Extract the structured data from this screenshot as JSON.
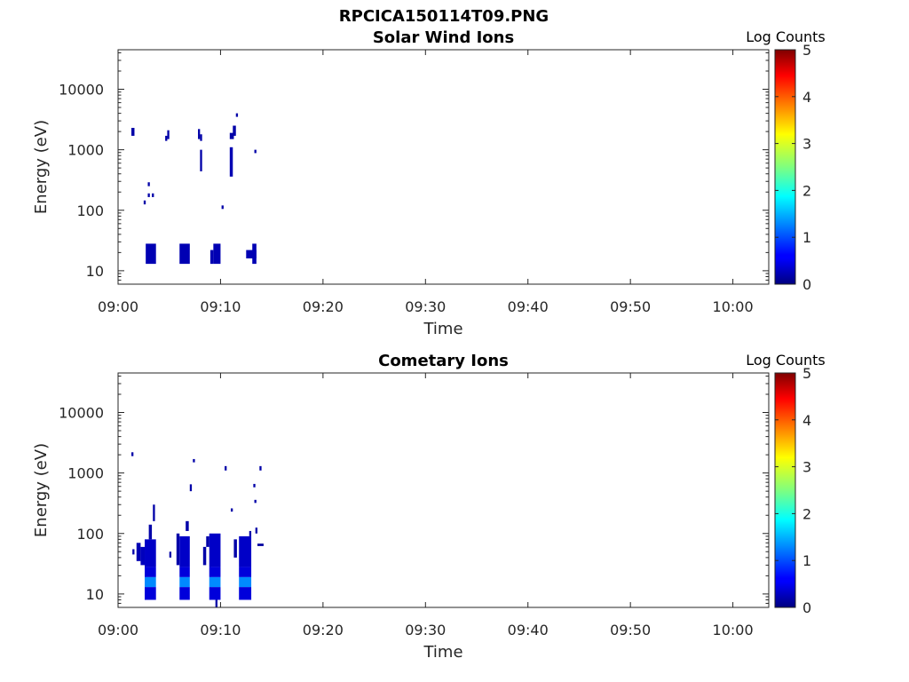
{
  "figure": {
    "title": "RPCICA150114T09.PNG"
  },
  "chart_data": [
    {
      "type": "heatmap",
      "title": "Solar Wind Ions",
      "xlabel": "Time",
      "ylabel": "Energy (eV)",
      "x_ticks": [
        "09:00",
        "09:10",
        "09:20",
        "09:30",
        "09:40",
        "09:50",
        "10:00"
      ],
      "xlim_minutes": [
        0,
        63.5
      ],
      "y_ticks": [
        {
          "value": 10,
          "label": "10"
        },
        {
          "value": 100,
          "label": "100"
        },
        {
          "value": 1000,
          "label": "1000"
        },
        {
          "value": 10000,
          "label": "10000"
        }
      ],
      "y_scale": "log",
      "ylim": [
        6,
        45000
      ],
      "colorbar": {
        "label": "Log Counts",
        "min": 0,
        "max": 5,
        "ticks": [
          "0",
          "1",
          "2",
          "3",
          "4",
          "5"
        ],
        "colormap": "jet"
      },
      "cells": [
        {
          "t0": 1.3,
          "t1": 1.6,
          "e0": 1700,
          "e1": 2300,
          "c": 0.2
        },
        {
          "t0": 2.5,
          "t1": 2.7,
          "e0": 125,
          "e1": 145,
          "c": 0.2
        },
        {
          "t0": 2.9,
          "t1": 3.1,
          "e0": 250,
          "e1": 290,
          "c": 0.2
        },
        {
          "t0": 2.9,
          "t1": 3.1,
          "e0": 165,
          "e1": 190,
          "c": 0.2
        },
        {
          "t0": 3.3,
          "t1": 3.5,
          "e0": 165,
          "e1": 190,
          "c": 0.2
        },
        {
          "t0": 2.7,
          "t1": 3.7,
          "e0": 13,
          "e1": 28,
          "c": 0.25
        },
        {
          "t0": 4.6,
          "t1": 4.8,
          "e0": 1400,
          "e1": 1700,
          "c": 0.2
        },
        {
          "t0": 4.8,
          "t1": 5.0,
          "e0": 1500,
          "e1": 2100,
          "c": 0.2
        },
        {
          "t0": 6.0,
          "t1": 7.0,
          "e0": 13,
          "e1": 28,
          "c": 0.25
        },
        {
          "t0": 7.8,
          "t1": 8.0,
          "e0": 1500,
          "e1": 2200,
          "c": 0.2
        },
        {
          "t0": 8.0,
          "t1": 8.2,
          "e0": 1400,
          "e1": 1800,
          "c": 0.2
        },
        {
          "t0": 8.0,
          "t1": 8.2,
          "e0": 440,
          "e1": 1000,
          "c": 0.2
        },
        {
          "t0": 9.0,
          "t1": 9.3,
          "e0": 13,
          "e1": 22,
          "c": 0.25
        },
        {
          "t0": 9.3,
          "t1": 10.0,
          "e0": 13,
          "e1": 28,
          "c": 0.25
        },
        {
          "t0": 10.1,
          "t1": 10.3,
          "e0": 105,
          "e1": 120,
          "c": 0.2
        },
        {
          "t0": 10.9,
          "t1": 11.2,
          "e0": 360,
          "e1": 1100,
          "c": 0.25
        },
        {
          "t0": 10.9,
          "t1": 11.3,
          "e0": 1500,
          "e1": 1900,
          "c": 0.2
        },
        {
          "t0": 11.2,
          "t1": 11.5,
          "e0": 1700,
          "e1": 2500,
          "c": 0.2
        },
        {
          "t0": 11.5,
          "t1": 11.7,
          "e0": 3500,
          "e1": 4000,
          "c": 0.2
        },
        {
          "t0": 12.5,
          "t1": 13.5,
          "e0": 16,
          "e1": 22,
          "c": 0.25
        },
        {
          "t0": 13.1,
          "t1": 13.5,
          "e0": 13,
          "e1": 28,
          "c": 0.25
        },
        {
          "t0": 13.3,
          "t1": 13.5,
          "e0": 880,
          "e1": 1000,
          "c": 0.2
        }
      ]
    },
    {
      "type": "heatmap",
      "title": "Cometary Ions",
      "xlabel": "Time",
      "ylabel": "Energy (eV)",
      "x_ticks": [
        "09:00",
        "09:10",
        "09:20",
        "09:30",
        "09:40",
        "09:50",
        "10:00"
      ],
      "xlim_minutes": [
        0,
        63.5
      ],
      "y_ticks": [
        {
          "value": 10,
          "label": "10"
        },
        {
          "value": 100,
          "label": "100"
        },
        {
          "value": 1000,
          "label": "1000"
        },
        {
          "value": 10000,
          "label": "10000"
        }
      ],
      "y_scale": "log",
      "ylim": [
        6,
        45000
      ],
      "colorbar": {
        "label": "Log Counts",
        "min": 0,
        "max": 5,
        "ticks": [
          "0",
          "1",
          "2",
          "3",
          "4",
          "5"
        ],
        "colormap": "jet"
      },
      "cells": [
        {
          "t0": 1.3,
          "t1": 1.5,
          "e0": 1900,
          "e1": 2200,
          "c": 0.2
        },
        {
          "t0": 1.4,
          "t1": 1.6,
          "e0": 45,
          "e1": 55,
          "c": 0.2
        },
        {
          "t0": 1.8,
          "t1": 2.2,
          "e0": 35,
          "e1": 70,
          "c": 0.25
        },
        {
          "t0": 2.2,
          "t1": 2.6,
          "e0": 30,
          "e1": 60,
          "c": 0.3
        },
        {
          "t0": 2.6,
          "t1": 3.7,
          "e0": 28,
          "e1": 80,
          "c": 0.35
        },
        {
          "t0": 3.0,
          "t1": 3.3,
          "e0": 80,
          "e1": 140,
          "c": 0.2
        },
        {
          "t0": 3.4,
          "t1": 3.6,
          "e0": 160,
          "e1": 300,
          "c": 0.2
        },
        {
          "t0": 2.6,
          "t1": 3.7,
          "e0": 19,
          "e1": 28,
          "c": 0.45
        },
        {
          "t0": 2.6,
          "t1": 3.7,
          "e0": 13,
          "e1": 19,
          "c": 1.3
        },
        {
          "t0": 2.6,
          "t1": 3.7,
          "e0": 8,
          "e1": 13,
          "c": 0.45
        },
        {
          "t0": 5.0,
          "t1": 5.2,
          "e0": 40,
          "e1": 50,
          "c": 0.2
        },
        {
          "t0": 5.7,
          "t1": 6.0,
          "e0": 30,
          "e1": 100,
          "c": 0.2
        },
        {
          "t0": 6.0,
          "t1": 7.0,
          "e0": 28,
          "e1": 90,
          "c": 0.35
        },
        {
          "t0": 6.6,
          "t1": 6.9,
          "e0": 110,
          "e1": 160,
          "c": 0.2
        },
        {
          "t0": 6.0,
          "t1": 7.0,
          "e0": 19,
          "e1": 28,
          "c": 0.45
        },
        {
          "t0": 6.0,
          "t1": 7.0,
          "e0": 13,
          "e1": 19,
          "c": 1.3
        },
        {
          "t0": 6.0,
          "t1": 7.0,
          "e0": 8,
          "e1": 13,
          "c": 0.45
        },
        {
          "t0": 7.0,
          "t1": 7.2,
          "e0": 500,
          "e1": 650,
          "c": 0.2
        },
        {
          "t0": 7.3,
          "t1": 7.5,
          "e0": 1500,
          "e1": 1700,
          "c": 0.2
        },
        {
          "t0": 8.3,
          "t1": 8.6,
          "e0": 30,
          "e1": 60,
          "c": 0.2
        },
        {
          "t0": 8.6,
          "t1": 8.9,
          "e0": 60,
          "e1": 90,
          "c": 0.2
        },
        {
          "t0": 8.9,
          "t1": 10.0,
          "e0": 28,
          "e1": 100,
          "c": 0.35
        },
        {
          "t0": 8.9,
          "t1": 10.0,
          "e0": 19,
          "e1": 28,
          "c": 0.45
        },
        {
          "t0": 8.9,
          "t1": 10.0,
          "e0": 13,
          "e1": 19,
          "c": 1.3
        },
        {
          "t0": 8.9,
          "t1": 10.0,
          "e0": 8,
          "e1": 13,
          "c": 0.45
        },
        {
          "t0": 9.5,
          "t1": 9.7,
          "e0": 6,
          "e1": 8,
          "c": 0.2
        },
        {
          "t0": 10.4,
          "t1": 10.6,
          "e0": 1100,
          "e1": 1300,
          "c": 0.2
        },
        {
          "t0": 11.0,
          "t1": 11.2,
          "e0": 230,
          "e1": 260,
          "c": 0.2
        },
        {
          "t0": 11.3,
          "t1": 11.6,
          "e0": 40,
          "e1": 80,
          "c": 0.2
        },
        {
          "t0": 11.8,
          "t1": 13.0,
          "e0": 28,
          "e1": 90,
          "c": 0.35
        },
        {
          "t0": 11.8,
          "t1": 13.0,
          "e0": 19,
          "e1": 28,
          "c": 0.45
        },
        {
          "t0": 11.8,
          "t1": 13.0,
          "e0": 13,
          "e1": 19,
          "c": 1.3
        },
        {
          "t0": 11.8,
          "t1": 13.0,
          "e0": 8,
          "e1": 13,
          "c": 0.45
        },
        {
          "t0": 12.8,
          "t1": 13.0,
          "e0": 90,
          "e1": 110,
          "c": 0.2
        },
        {
          "t0": 13.2,
          "t1": 13.4,
          "e0": 580,
          "e1": 660,
          "c": 0.2
        },
        {
          "t0": 13.3,
          "t1": 13.5,
          "e0": 320,
          "e1": 360,
          "c": 0.2
        },
        {
          "t0": 13.4,
          "t1": 13.6,
          "e0": 100,
          "e1": 125,
          "c": 0.2
        },
        {
          "t0": 13.8,
          "t1": 14.0,
          "e0": 1100,
          "e1": 1300,
          "c": 0.2
        },
        {
          "t0": 13.6,
          "t1": 14.2,
          "e0": 62,
          "e1": 68,
          "c": 0.15
        }
      ]
    }
  ]
}
